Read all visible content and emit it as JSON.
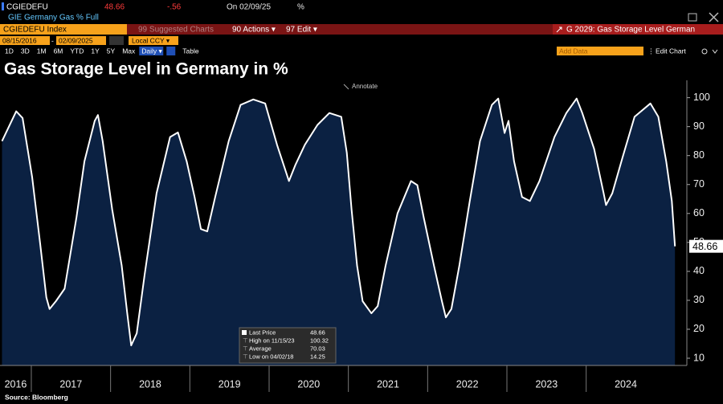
{
  "header": {
    "ticker": "CGIEDEFU",
    "last": "48.66",
    "change": "-.56",
    "on": "On 02/09/25",
    "unit": "%",
    "description": "GIE Germany Gas % Full"
  },
  "toolbar": {
    "security": "CGIEDEFU Index",
    "suggested": "99 Suggested Charts",
    "actions": "90 Actions ▾",
    "edit": "97 Edit ▾",
    "chart_name": "G 2029: Gas Storage Level German",
    "start_date": "08/15/2016",
    "end_date": "02/09/2025",
    "currency": "Local CCY ▾",
    "ranges": [
      "1D",
      "3D",
      "1M",
      "6M",
      "YTD",
      "1Y",
      "5Y",
      "Max"
    ],
    "frequency": "Daily ▾",
    "table": "Table",
    "add_data": "Add Data",
    "edit_chart": "Edit Chart",
    "annotate": "Annotate"
  },
  "chart_data": {
    "type": "line",
    "title": "Gas Storage Level in Germany in %",
    "x": [
      2016.63,
      2016.81,
      2016.89,
      2017.01,
      2017.11,
      2017.19,
      2017.23,
      2017.31,
      2017.42,
      2017.57,
      2017.67,
      2017.8,
      2017.84,
      2017.9,
      2018.02,
      2018.14,
      2018.21,
      2018.26,
      2018.33,
      2018.43,
      2018.58,
      2018.75,
      2018.85,
      2018.96,
      2019.06,
      2019.14,
      2019.22,
      2019.32,
      2019.49,
      2019.64,
      2019.8,
      2019.95,
      2020.1,
      2020.25,
      2020.33,
      2020.45,
      2020.61,
      2020.76,
      2020.91,
      2020.98,
      2021.04,
      2021.11,
      2021.18,
      2021.29,
      2021.37,
      2021.47,
      2021.62,
      2021.79,
      2021.87,
      2021.95,
      2022.08,
      2022.18,
      2022.23,
      2022.3,
      2022.4,
      2022.53,
      2022.66,
      2022.81,
      2022.89,
      2022.97,
      2023.02,
      2023.09,
      2023.19,
      2023.29,
      2023.41,
      2023.6,
      2023.75,
      2023.88,
      2023.95,
      2024.1,
      2024.22,
      2024.25,
      2024.33,
      2024.46,
      2024.61,
      2024.81,
      2024.91,
      2025.01,
      2025.08,
      2025.12
    ],
    "series": [
      {
        "name": "Last Price",
        "color": "#ffffff",
        "fill": "#0b2142",
        "values": [
          85,
          95.3,
          93,
          72.6,
          50,
          31,
          27,
          29.7,
          34,
          58.7,
          78,
          92,
          94,
          85,
          61.5,
          42,
          25.5,
          14.4,
          18.6,
          39,
          67,
          86.4,
          88,
          78,
          65.7,
          54.6,
          53.8,
          65.7,
          85,
          97.5,
          99.4,
          98,
          83.7,
          71.2,
          76.7,
          83.7,
          90.6,
          94.7,
          93.4,
          81,
          61.5,
          42,
          29.7,
          25.5,
          28,
          42,
          60,
          71.2,
          69.8,
          58.7,
          42,
          29.7,
          24.1,
          27,
          42,
          64,
          85,
          97.5,
          99.7,
          87.8,
          92,
          78,
          65.7,
          64.3,
          71.2,
          86.4,
          94.7,
          99.7,
          94.7,
          82.3,
          67,
          62.9,
          67,
          79.5,
          93.4,
          98,
          93.4,
          78,
          64.3,
          48.66
        ]
      }
    ],
    "xlim": [
      2016.605,
      2025.27
    ],
    "xticks": [
      2016,
      2017,
      2018,
      2019,
      2020,
      2021,
      2022,
      2023,
      2024
    ],
    "ylim": [
      7.5,
      106
    ],
    "yticks": [
      10,
      20,
      30,
      40,
      50,
      60,
      70,
      80,
      90,
      100
    ],
    "legend": [
      {
        "label": "High on 11/15/23",
        "value": "100.32"
      },
      {
        "label": "Average",
        "value": "70.03"
      },
      {
        "label": "Low on 04/02/18",
        "value": "14.25"
      }
    ],
    "source": "Source: Bloomberg"
  }
}
